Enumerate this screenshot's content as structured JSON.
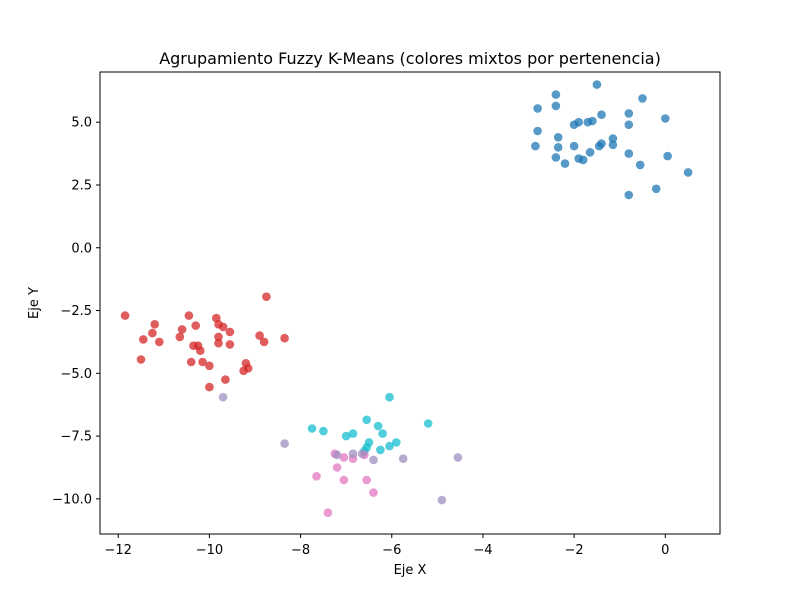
{
  "chart_data": {
    "type": "scatter",
    "title": "Agrupamiento Fuzzy K-Means (colores mixtos por pertenencia)",
    "xlabel": "Eje X",
    "ylabel": "Eje Y",
    "xlim": [
      -12.4,
      1.2
    ],
    "ylim": [
      -11.4,
      7.0
    ],
    "xticks": [
      -12,
      -10,
      -8,
      -6,
      -4,
      -2,
      0
    ],
    "yticks": [
      -10.0,
      -7.5,
      -5.0,
      -2.5,
      0.0,
      2.5,
      5.0
    ],
    "grid": false,
    "legend": "none",
    "point_alpha": 0.75,
    "clusters": [
      {
        "color": "#1f77b4",
        "points": [
          [
            -1.5,
            6.5
          ],
          [
            -2.4,
            6.1
          ],
          [
            -0.5,
            5.95
          ],
          [
            -2.4,
            5.65
          ],
          [
            -2.8,
            5.55
          ],
          [
            -0.8,
            5.35
          ],
          [
            -1.4,
            5.3
          ],
          [
            0.0,
            5.15
          ],
          [
            -1.6,
            5.05
          ],
          [
            -1.9,
            5.0
          ],
          [
            -1.7,
            5.0
          ],
          [
            -2.0,
            4.9
          ],
          [
            -0.8,
            4.9
          ],
          [
            -2.8,
            4.65
          ],
          [
            -2.35,
            4.4
          ],
          [
            -1.15,
            4.35
          ],
          [
            -1.4,
            4.15
          ],
          [
            -1.15,
            4.1
          ],
          [
            -1.45,
            4.05
          ],
          [
            -2.85,
            4.05
          ],
          [
            -2.35,
            4.0
          ],
          [
            -2.0,
            4.05
          ],
          [
            -1.65,
            3.8
          ],
          [
            -0.8,
            3.75
          ],
          [
            0.05,
            3.65
          ],
          [
            -2.4,
            3.6
          ],
          [
            -1.9,
            3.55
          ],
          [
            -1.8,
            3.5
          ],
          [
            -2.2,
            3.35
          ],
          [
            -0.55,
            3.3
          ],
          [
            0.5,
            3.0
          ],
          [
            -0.2,
            2.35
          ],
          [
            -0.8,
            2.1
          ]
        ]
      },
      {
        "color": "#d62728",
        "points": [
          [
            -8.75,
            -1.95
          ],
          [
            -11.85,
            -2.7
          ],
          [
            -10.45,
            -2.7
          ],
          [
            -9.85,
            -2.8
          ],
          [
            -11.2,
            -3.05
          ],
          [
            -9.8,
            -3.05
          ],
          [
            -10.3,
            -3.1
          ],
          [
            -9.7,
            -3.15
          ],
          [
            -10.6,
            -3.25
          ],
          [
            -11.25,
            -3.4
          ],
          [
            -9.55,
            -3.35
          ],
          [
            -10.65,
            -3.55
          ],
          [
            -9.8,
            -3.55
          ],
          [
            -8.9,
            -3.5
          ],
          [
            -8.35,
            -3.6
          ],
          [
            -11.45,
            -3.65
          ],
          [
            -11.1,
            -3.75
          ],
          [
            -8.8,
            -3.75
          ],
          [
            -9.8,
            -3.8
          ],
          [
            -9.55,
            -3.85
          ],
          [
            -10.35,
            -3.9
          ],
          [
            -10.25,
            -3.9
          ],
          [
            -10.2,
            -4.1
          ],
          [
            -11.5,
            -4.45
          ],
          [
            -10.4,
            -4.55
          ],
          [
            -10.15,
            -4.55
          ],
          [
            -9.2,
            -4.6
          ],
          [
            -10.0,
            -4.7
          ],
          [
            -9.15,
            -4.8
          ],
          [
            -9.25,
            -4.9
          ],
          [
            -9.65,
            -5.25
          ],
          [
            -10.0,
            -5.55
          ]
        ]
      },
      {
        "color": "#17becf",
        "points": [
          [
            -6.05,
            -5.95
          ],
          [
            -5.2,
            -7.0
          ],
          [
            -6.55,
            -6.85
          ],
          [
            -6.3,
            -7.1
          ],
          [
            -7.75,
            -7.2
          ],
          [
            -7.5,
            -7.3
          ],
          [
            -6.2,
            -7.4
          ],
          [
            -6.85,
            -7.4
          ],
          [
            -7.0,
            -7.5
          ],
          [
            -5.9,
            -7.75
          ],
          [
            -6.5,
            -7.75
          ],
          [
            -6.05,
            -7.9
          ],
          [
            -6.55,
            -7.95
          ],
          [
            -6.25,
            -8.05
          ],
          [
            -6.6,
            -8.1
          ]
        ]
      },
      {
        "color": "#e377c2",
        "points": [
          [
            -7.25,
            -8.2
          ],
          [
            -6.6,
            -8.25
          ],
          [
            -7.05,
            -8.35
          ],
          [
            -6.85,
            -8.4
          ],
          [
            -7.2,
            -8.75
          ],
          [
            -7.65,
            -9.1
          ],
          [
            -7.05,
            -9.25
          ],
          [
            -6.55,
            -9.25
          ],
          [
            -6.4,
            -9.75
          ],
          [
            -7.4,
            -10.55
          ]
        ]
      },
      {
        "color": "#9f8fc0",
        "points": [
          [
            -9.7,
            -5.95
          ],
          [
            -8.35,
            -7.8
          ],
          [
            -6.65,
            -8.2
          ],
          [
            -6.85,
            -8.2
          ],
          [
            -7.2,
            -8.25
          ],
          [
            -6.4,
            -8.45
          ],
          [
            -5.75,
            -8.4
          ],
          [
            -4.55,
            -8.35
          ],
          [
            -4.9,
            -10.05
          ]
        ]
      }
    ]
  }
}
